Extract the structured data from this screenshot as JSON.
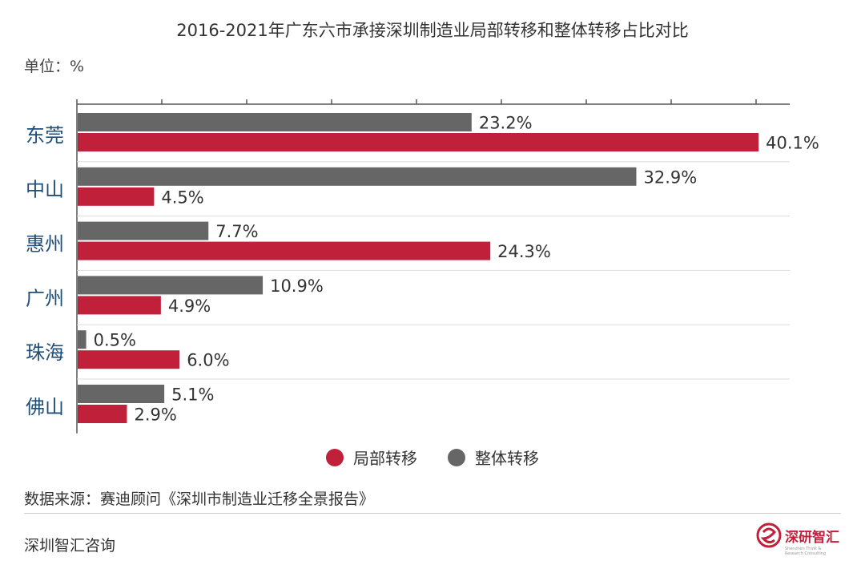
{
  "title": "2016-2021年广东六市承接深圳制造业局部转移和整体转移占比对比",
  "unit": "单位：%",
  "chart_data": {
    "type": "bar",
    "orientation": "horizontal",
    "categories": [
      "东莞",
      "中山",
      "惠州",
      "广州",
      "珠海",
      "佛山"
    ],
    "series": [
      {
        "name": "整体转移",
        "color": "#666666",
        "values": [
          23.2,
          32.9,
          7.7,
          10.9,
          0.5,
          5.1
        ]
      },
      {
        "name": "局部转移",
        "color": "#c0203a",
        "values": [
          40.1,
          4.5,
          24.3,
          4.9,
          6.0,
          2.9
        ]
      }
    ],
    "value_suffix": "%",
    "xlim": [
      0,
      42
    ],
    "legend": "bottom-center",
    "grid": true
  },
  "legend": {
    "items": [
      {
        "label": "局部转移",
        "color": "#c0203a"
      },
      {
        "label": "整体转移",
        "color": "#666666"
      }
    ]
  },
  "source": "数据来源：赛迪顾问《深圳市制造业迁移全景报告》",
  "footer": "深圳智汇咨询",
  "brand": {
    "name": "深研智汇",
    "subtitle": "Shenzhen Think & Research Consulting",
    "accent": "#c0203a"
  },
  "colors": {
    "category_label": "#1f4e79",
    "axis": "#555555",
    "grid": "#dddddd"
  }
}
